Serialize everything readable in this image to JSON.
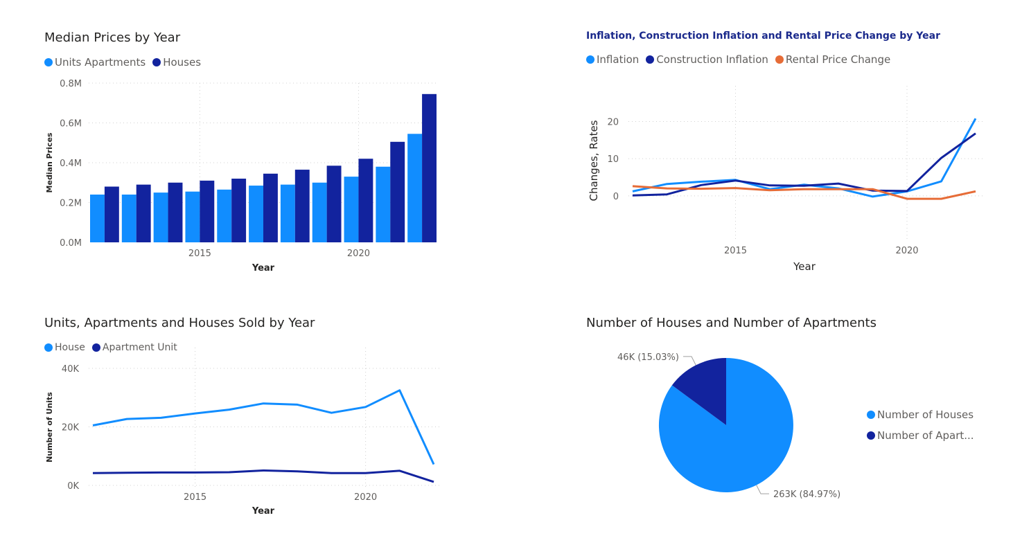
{
  "chart_data": [
    {
      "type": "bar",
      "title": "Median Prices by Year",
      "xlabel": "Year",
      "ylabel": "Median Prices",
      "categories": [
        2012,
        2013,
        2014,
        2015,
        2016,
        2017,
        2018,
        2019,
        2020,
        2021,
        2022
      ],
      "x_ticks": [
        "2015",
        "2020"
      ],
      "y_ticks": [
        "0.0M",
        "0.2M",
        "0.4M",
        "0.6M",
        "0.8M"
      ],
      "ylim": [
        0,
        0.8
      ],
      "series": [
        {
          "name": "Units Apartments",
          "color": "#118dff",
          "values": [
            0.24,
            0.24,
            0.25,
            0.255,
            0.265,
            0.285,
            0.29,
            0.3,
            0.33,
            0.38,
            0.545
          ]
        },
        {
          "name": "Houses",
          "color": "#12239e",
          "values": [
            0.28,
            0.29,
            0.3,
            0.31,
            0.32,
            0.345,
            0.365,
            0.385,
            0.42,
            0.505,
            0.745
          ]
        }
      ],
      "grid": true,
      "legend": "top-left"
    },
    {
      "type": "line",
      "title": "Inflation, Construction Inflation and Rental Price Change by Year",
      "xlabel": "Year",
      "ylabel": "Changes, Rates",
      "x": [
        2012,
        2013,
        2014,
        2015,
        2016,
        2017,
        2018,
        2019,
        2020,
        2021,
        2022
      ],
      "x_ticks": [
        "2015",
        "2020"
      ],
      "y_ticks": [
        "0",
        "10",
        "20"
      ],
      "ylim": [
        -4.5,
        24
      ],
      "series": [
        {
          "name": "Inflation",
          "color": "#118dff",
          "values": [
            1.2,
            3.2,
            3.8,
            4.3,
            1.8,
            3.0,
            2.0,
            -0.2,
            1.2,
            3.9,
            20.8
          ]
        },
        {
          "name": "Construction Inflation",
          "color": "#12239e",
          "values": [
            0.1,
            0.4,
            2.9,
            4.1,
            2.8,
            2.7,
            3.3,
            1.4,
            1.3,
            10.2,
            16.8
          ]
        },
        {
          "name": "Rental Price Change",
          "color": "#e66c37",
          "values": [
            2.6,
            2.0,
            1.9,
            2.1,
            1.5,
            1.8,
            1.8,
            1.8,
            -0.8,
            -0.8,
            1.2
          ]
        }
      ],
      "grid": true,
      "legend": "top-left"
    },
    {
      "type": "line",
      "title": "Units, Apartments and Houses Sold by Year",
      "xlabel": "Year",
      "ylabel": "Number of Units",
      "x": [
        2012,
        2013,
        2014,
        2015,
        2016,
        2017,
        2018,
        2019,
        2020,
        2021,
        2022
      ],
      "x_ticks": [
        "2015",
        "2020"
      ],
      "y_ticks": [
        "0K",
        "20K",
        "40K"
      ],
      "ylim": [
        0,
        40
      ],
      "series": [
        {
          "name": "House",
          "color": "#118dff",
          "values": [
            20.5,
            22.7,
            23.1,
            24.6,
            25.9,
            28.0,
            27.6,
            24.8,
            26.8,
            32.5,
            7.2
          ]
        },
        {
          "name": "Apartment Unit",
          "color": "#12239e",
          "values": [
            4.2,
            4.3,
            4.4,
            4.4,
            4.5,
            5.1,
            4.8,
            4.2,
            4.2,
            5.0,
            1.2
          ]
        }
      ],
      "grid": true,
      "legend": "top-left"
    },
    {
      "type": "pie",
      "title": "Number of Houses and Number of Apartments",
      "slices": [
        {
          "name": "Number of Houses",
          "legend_label": "Number of Houses",
          "value": 263,
          "percent": 84.97,
          "label": "263K (84.97%)",
          "color": "#118dff"
        },
        {
          "name": "Number of Apartments",
          "legend_label": "Number of Apart...",
          "value": 46,
          "percent": 15.03,
          "label": "46K (15.03%)",
          "color": "#12239e"
        }
      ],
      "legend": "right"
    }
  ]
}
